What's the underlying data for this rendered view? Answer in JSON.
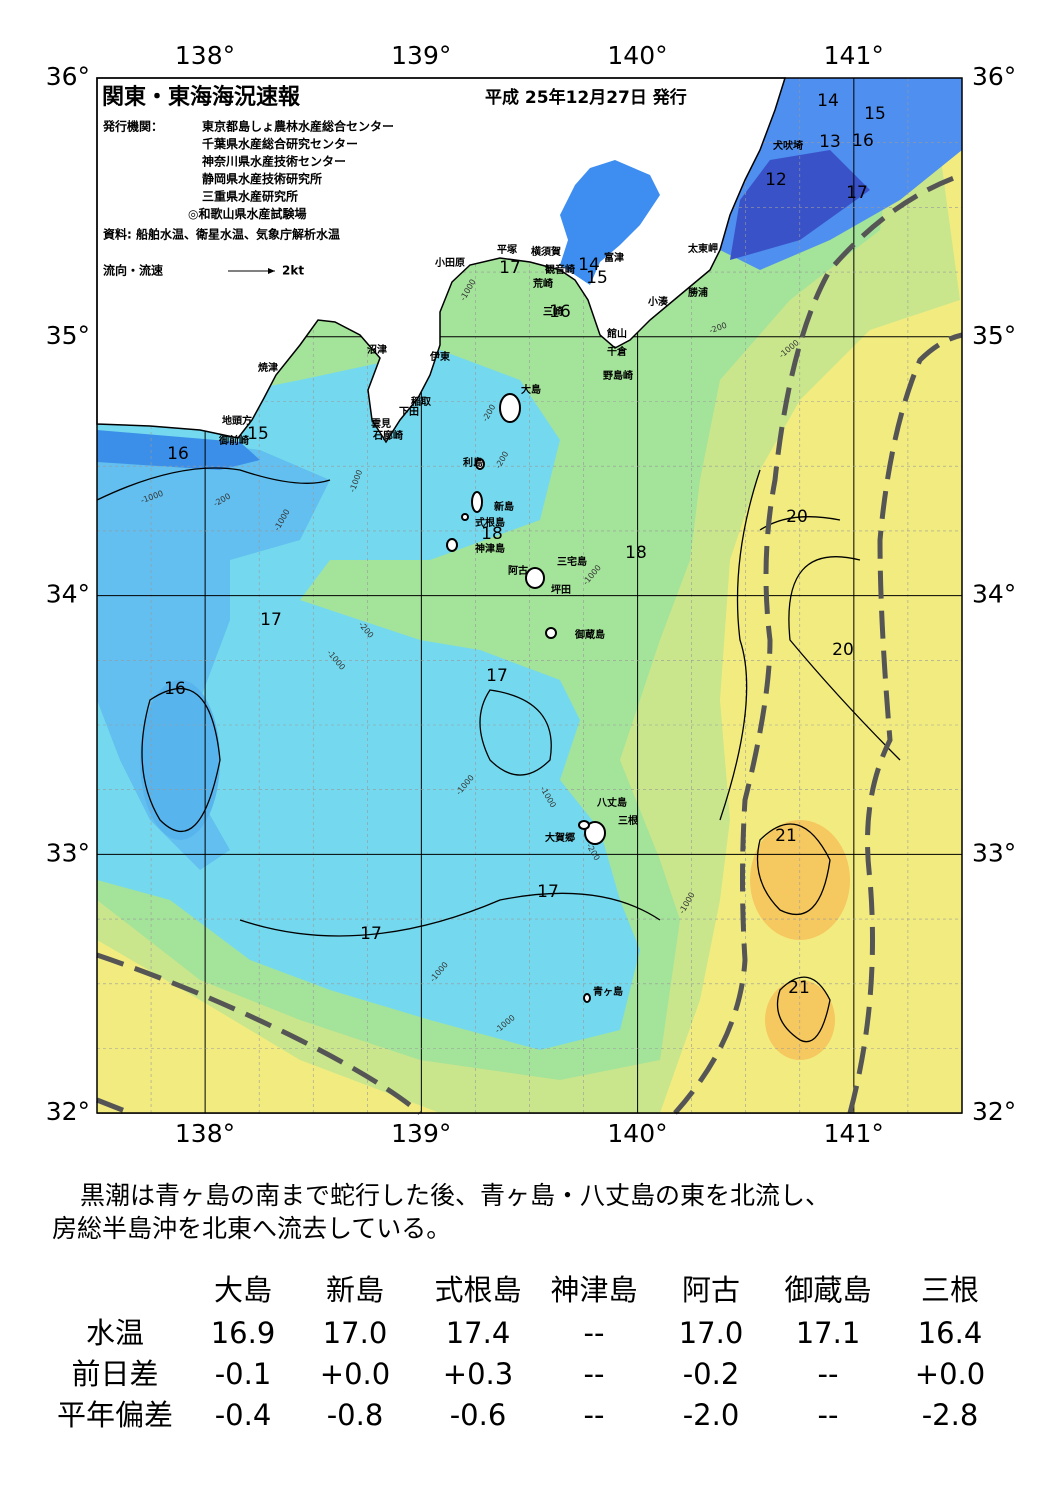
{
  "header": {
    "title": "関東・東海海況速報",
    "date": "平成 25年12月27日 発行",
    "issuer_label": "発行機関：",
    "issuers": [
      "東京都島しょ農林水産総合センター",
      "千葉県水産総合研究センター",
      "神奈川県水産技術センター",
      "静岡県水産技術研究所",
      "三重県水産研究所",
      "◎和歌山県水産試験場"
    ],
    "source": "資料: 船舶水温、衛星水温、気象庁解析水温",
    "legend_label": "流向・流速",
    "legend_scale": "2kt"
  },
  "map": {
    "lon_labels": [
      "138°",
      "139°",
      "140°",
      "141°"
    ],
    "lat_labels": [
      "36°",
      "35°",
      "34°",
      "33°",
      "32°"
    ],
    "place_names": [
      "小田原",
      "平塚",
      "横須賀",
      "富津",
      "観音崎",
      "荒崎",
      "三崎",
      "太東岬",
      "勝浦",
      "小湊",
      "館山",
      "千倉",
      "野島崎",
      "沼津",
      "伊東",
      "焼津",
      "稲取",
      "下田",
      "雲見",
      "石廊崎",
      "地頭方",
      "御前崎",
      "大島",
      "利島",
      "新島",
      "式根島",
      "神津島",
      "三宅島",
      "阿古",
      "坪田",
      "御蔵島",
      "八丈島",
      "三根",
      "大賀郷",
      "青ヶ島",
      "犬吠埼"
    ],
    "contour_labels": [
      "14",
      "15",
      "13",
      "16",
      "12",
      "17",
      "17",
      "14",
      "15",
      "16",
      "15",
      "16",
      "20",
      "18",
      "18",
      "17",
      "20",
      "16",
      "17",
      "21",
      "17",
      "17",
      "21"
    ],
    "depth_labels": [
      "-1000",
      "-200",
      "-1000",
      "-200",
      "-200",
      "-1000",
      "-1000",
      "-200",
      "-1000",
      "-1000",
      "-200",
      "-1000",
      "-1000",
      "-1000",
      "-200",
      "-1000",
      "-1000",
      "-1000"
    ]
  },
  "description": [
    "黒潮は青ヶ島の南まで蛇行した後、青ヶ島・八丈島の東を北流し、",
    "房総半島沖を北東へ流去している。"
  ],
  "table": {
    "columns": [
      "大島",
      "新島",
      "式根島",
      "神津島",
      "阿古",
      "御蔵島",
      "三根"
    ],
    "rows": [
      [
        "水温",
        "16.9",
        "17.0",
        "17.4",
        "--",
        "17.0",
        "17.1",
        "16.4"
      ],
      [
        "前日差",
        "-0.1",
        "+0.0",
        "+0.3",
        "--",
        "-0.2",
        "--",
        "+0.0"
      ],
      [
        "平年偏差",
        "-0.4",
        "-0.8",
        "-0.6",
        "--",
        "-2.0",
        "--",
        "-2.8"
      ]
    ]
  }
}
